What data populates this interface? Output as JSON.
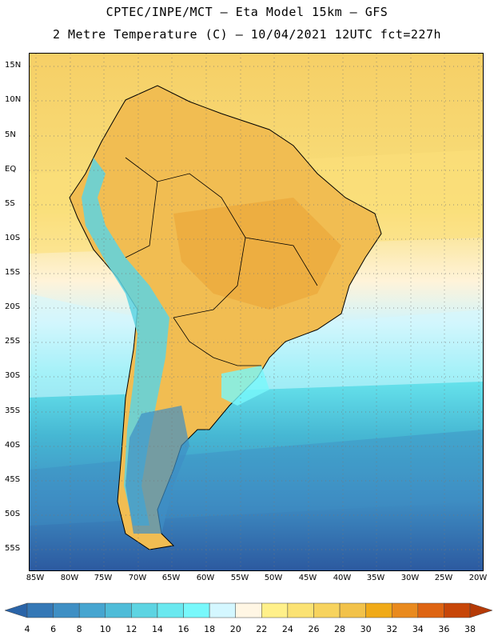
{
  "title_line1": "CPTEC/INPE/MCT –  Eta Model 15km – GFS",
  "title_line2": "2 Metre Temperature (C) – 10/04/2021 12UTC fct=227h",
  "lat_labels": [
    "15N",
    "10N",
    "5N",
    "EQ",
    "5S",
    "10S",
    "15S",
    "20S",
    "25S",
    "30S",
    "35S",
    "40S",
    "45S",
    "50S",
    "55S"
  ],
  "lon_labels": [
    "85W",
    "80W",
    "75W",
    "70W",
    "65W",
    "60W",
    "55W",
    "50W",
    "45W",
    "40W",
    "35W",
    "30W",
    "25W",
    "20W"
  ],
  "legend": {
    "values": [
      "4",
      "6",
      "8",
      "10",
      "12",
      "14",
      "16",
      "18",
      "20",
      "22",
      "24",
      "26",
      "28",
      "30",
      "32",
      "34",
      "36",
      "38"
    ],
    "colors": [
      "#2a64a8",
      "#3578b6",
      "#3f8fc4",
      "#46a5d0",
      "#4fbcd8",
      "#5dd4e2",
      "#6ae8ef",
      "#78f8fb",
      "#d4f7ff",
      "#fff6e4",
      "#fff08a",
      "#fbe273",
      "#f7d35e",
      "#f2c24a",
      "#f0aa18",
      "#e98a1e",
      "#de6412",
      "#c74608",
      "#b53a06"
    ]
  }
}
